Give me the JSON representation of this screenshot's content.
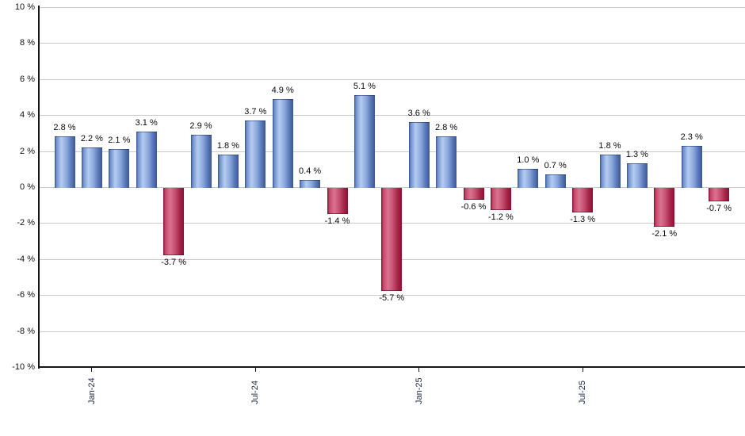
{
  "chart": {
    "background_color": "#ffffff",
    "axis_color": "#151515",
    "grid_color": "#c9c9c9",
    "y_label_color": "#111111",
    "x_label_color": "#1f2a4a",
    "value_label_color": "#0a0a0a"
  },
  "chart_data": {
    "type": "bar",
    "title": "",
    "xlabel": "",
    "ylabel": "",
    "unit": "%",
    "ylim": [
      -10,
      10
    ],
    "grid": true,
    "legend": "none",
    "bar_count": 25,
    "values": [
      2.8,
      2.2,
      2.1,
      3.1,
      -3.7,
      2.9,
      1.8,
      3.7,
      4.9,
      0.4,
      -1.4,
      5.1,
      -5.7,
      3.6,
      2.8,
      -0.6,
      -1.2,
      1.0,
      0.7,
      -1.3,
      1.8,
      1.3,
      -2.1,
      2.3,
      -0.7
    ],
    "value_labels": [
      "2.8 %",
      "2.2 %",
      "2.1 %",
      "3.1 %",
      "-3.7 %",
      "2.9 %",
      "1.8 %",
      "3.7 %",
      "4.9 %",
      "0.4 %",
      "-1.4 %",
      "5.1 %",
      "-5.7 %",
      "3.6 %",
      "2.8 %",
      "-0.6 %",
      "-1.2 %",
      "1.0 %",
      "0.7 %",
      "-1.3 %",
      "1.8 %",
      "1.3 %",
      "-2.1 %",
      "2.3 %",
      "-0.7 %"
    ],
    "x_ticks": [
      {
        "bar_index": 1,
        "label": "Jan-24"
      },
      {
        "bar_index": 7,
        "label": "Jul-24"
      },
      {
        "bar_index": 13,
        "label": "Jan-25"
      },
      {
        "bar_index": 19,
        "label": "Jul-25"
      }
    ],
    "y_ticks": [
      {
        "value": 10,
        "label": "10 %"
      },
      {
        "value": 8,
        "label": "8 %"
      },
      {
        "value": 6,
        "label": "6 %"
      },
      {
        "value": 4,
        "label": "4 %"
      },
      {
        "value": 2,
        "label": "2 %"
      },
      {
        "value": 0,
        "label": "0 %"
      },
      {
        "value": -2,
        "label": "-2 %"
      },
      {
        "value": -4,
        "label": "-4 %"
      },
      {
        "value": -6,
        "label": "-6 %"
      },
      {
        "value": -8,
        "label": "-8 %"
      },
      {
        "value": -10,
        "label": "-10 %"
      }
    ],
    "positive_color": "#6f93d2",
    "negative_color": "#c23558",
    "positive_gradient": [
      "#33508c 0%",
      "#6c8ecb 8%",
      "#b5ccf1 32%",
      "#8ba8dc 58%",
      "#5b7ab8 80%",
      "#3a5794 100%"
    ],
    "negative_gradient": [
      "#7e0e2c 0%",
      "#c4476a 10%",
      "#da7490 33%",
      "#c44e6e 58%",
      "#a52648 80%",
      "#8c0f32 100%"
    ]
  }
}
